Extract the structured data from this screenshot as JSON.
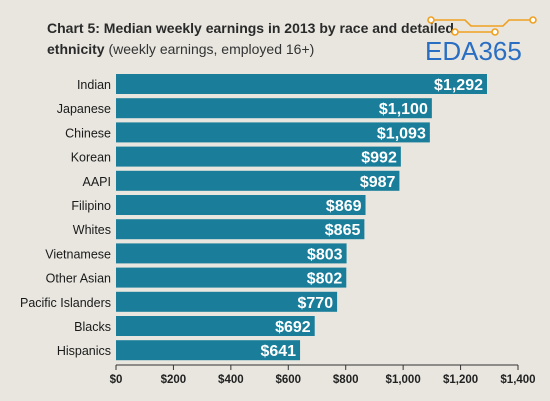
{
  "title_prefix": "Chart 5:",
  "title_main": "Median weekly earnings in 2013 by race and detailed ethnicity",
  "subtitle": "(weekly earnings, employed 16+)",
  "logo_text": "EDA365",
  "colors": {
    "bar": "#1a7e9a",
    "label": "#ffffff",
    "category": "#1a1a1a",
    "logo": "#2a6ec4",
    "logo_accent": "#f0a020"
  },
  "chart_data": {
    "type": "bar",
    "orientation": "horizontal",
    "title": "Chart 5: Median weekly earnings in 2013 by race and detailed ethnicity",
    "subtitle": "(weekly earnings, employed 16+)",
    "categories": [
      "Indian",
      "Japanese",
      "Chinese",
      "Korean",
      "AAPI",
      "Filipino",
      "Whites",
      "Vietnamese",
      "Other Asian",
      "Pacific Islanders",
      "Blacks",
      "Hispanics"
    ],
    "values": [
      1292,
      1100,
      1093,
      992,
      987,
      869,
      865,
      803,
      802,
      770,
      692,
      641
    ],
    "value_labels": [
      "$1,292",
      "$1,100",
      "$1,093",
      "$992",
      "$987",
      "$869",
      "$865",
      "$803",
      "$802",
      "$770",
      "$692",
      "$641"
    ],
    "xlim": [
      0,
      1400
    ],
    "x_ticks": [
      0,
      200,
      400,
      600,
      800,
      1000,
      1200,
      1400
    ],
    "x_tick_labels": [
      "$0",
      "$200",
      "$400",
      "$600",
      "$800",
      "$1,000",
      "$1,200",
      "$1,400"
    ],
    "xlabel": "",
    "ylabel": "",
    "grid": false
  }
}
